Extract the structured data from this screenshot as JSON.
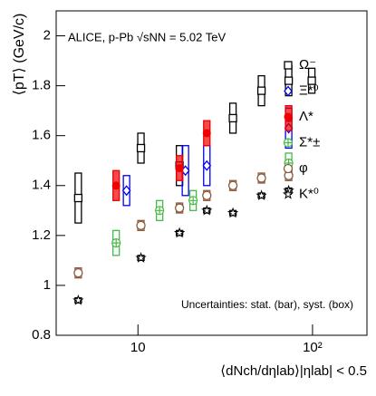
{
  "chart_data": {
    "type": "scatter",
    "title": "ALICE, p-Pb √sNN = 5.02 TeV",
    "annotation": "Uncertainties: stat. (bar), syst. (box)",
    "y_label": "⟨pT⟩ (GeV/c)",
    "x_label": "⟨dNch/dηlab⟩|ηlab| < 0.5",
    "log_x": true,
    "xlim": [
      3.4,
      205
    ],
    "xticks": [
      10,
      {
        "value": 100,
        "label": "10²"
      }
    ],
    "ylim": [
      0.8,
      2.1
    ],
    "yticks": [
      0.8,
      1,
      1.2,
      1.4,
      1.6,
      1.8,
      2
    ],
    "legend": "upper right",
    "series": [
      {
        "name": "Ω⁻",
        "color": "#000000",
        "marker": "square",
        "x": [
          4.55,
          10.4,
          17.3,
          35,
          51,
          73,
          99
        ],
        "values": [
          1.35,
          1.55,
          1.48,
          1.67,
          1.78,
          1.82,
          1.82
        ],
        "errors": [
          0.1,
          0.06,
          0.08,
          0.06,
          0.06,
          0.06,
          0.05
        ]
      },
      {
        "name": "Ξ*⁰",
        "color": "#0000ee",
        "marker": "diamond",
        "x": [
          8.6,
          18.7,
          24.8,
          73
        ],
        "values": [
          1.38,
          1.46,
          1.48,
          1.63
        ],
        "errors": [
          0.06,
          0.1,
          0.08,
          0.08
        ]
      },
      {
        "name": "Λ*",
        "color": "#ee0000",
        "marker": "filled-circle",
        "x": [
          7.5,
          17.3,
          24.8,
          73
        ],
        "values": [
          1.4,
          1.47,
          1.61,
          1.67
        ],
        "errors": [
          0.06,
          0.05,
          0.05,
          0.05
        ]
      },
      {
        "name": "Σ*±",
        "color": "#44bb44",
        "marker": "cross-circle",
        "x": [
          7.5,
          13.3,
          20.7,
          73
        ],
        "values": [
          1.17,
          1.3,
          1.34,
          1.49
        ],
        "errors": [
          0.05,
          0.04,
          0.04,
          0.04
        ]
      },
      {
        "name": "φ",
        "color": "#8b5a3c",
        "marker": "circle",
        "x": [
          4.55,
          10.4,
          17.3,
          24.8,
          35,
          51,
          73
        ],
        "values": [
          1.05,
          1.24,
          1.31,
          1.36,
          1.4,
          1.43,
          1.44
        ],
        "errors": [
          0.02,
          0.02,
          0.02,
          0.02,
          0.02,
          0.02,
          0.02
        ]
      },
      {
        "name": "K*⁰",
        "color": "#000000",
        "marker": "star",
        "x": [
          4.55,
          10.4,
          17.3,
          24.8,
          35,
          51,
          73
        ],
        "values": [
          0.94,
          1.11,
          1.21,
          1.3,
          1.29,
          1.36,
          1.38
        ],
        "errors": [
          0.01,
          0.01,
          0.01,
          0.01,
          0.01,
          0.01,
          0.01
        ]
      }
    ]
  }
}
